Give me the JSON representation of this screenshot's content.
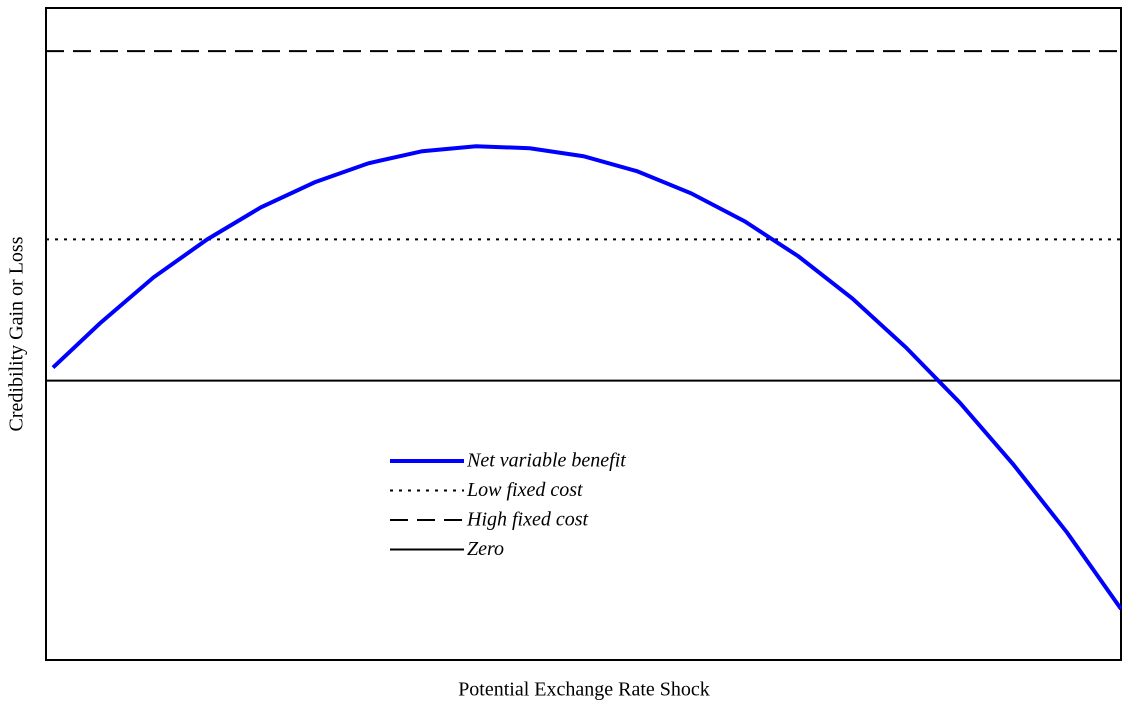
{
  "chart_data": {
    "type": "line",
    "x_label": "Potential Exchange Rate Shock",
    "y_label": "Credibility Gain or Loss",
    "xlim": [
      0,
      100
    ],
    "ylim": [
      -27.9,
      37.2
    ],
    "series": [
      {
        "name": "Net variable benefit",
        "color": "#0000ff",
        "style": "solid",
        "width": 4,
        "x": [
          0.65,
          5,
          10,
          15,
          20,
          25,
          30,
          35,
          40,
          45,
          50,
          55,
          60,
          65,
          70,
          75,
          80,
          85,
          90,
          95,
          100
        ],
        "values": [
          1.3,
          5.7,
          10.3,
          14.1,
          17.3,
          19.8,
          21.7,
          22.9,
          23.4,
          23.2,
          22.4,
          20.9,
          18.7,
          15.9,
          12.4,
          8.2,
          3.3,
          -2.2,
          -8.4,
          -15.2,
          -22.8
        ]
      },
      {
        "name": "Low fixed cost",
        "color": "#000000",
        "style": "dotted",
        "width": 2,
        "x": [
          0,
          100
        ],
        "values": [
          14.1,
          14.1
        ]
      },
      {
        "name": "High fixed cost",
        "color": "#000000",
        "style": "dashed",
        "width": 2,
        "x": [
          0,
          100
        ],
        "values": [
          32.9,
          32.9
        ]
      },
      {
        "name": "Zero",
        "color": "#000000",
        "style": "solid",
        "width": 2,
        "x": [
          0,
          100
        ],
        "values": [
          0,
          0
        ]
      }
    ]
  }
}
